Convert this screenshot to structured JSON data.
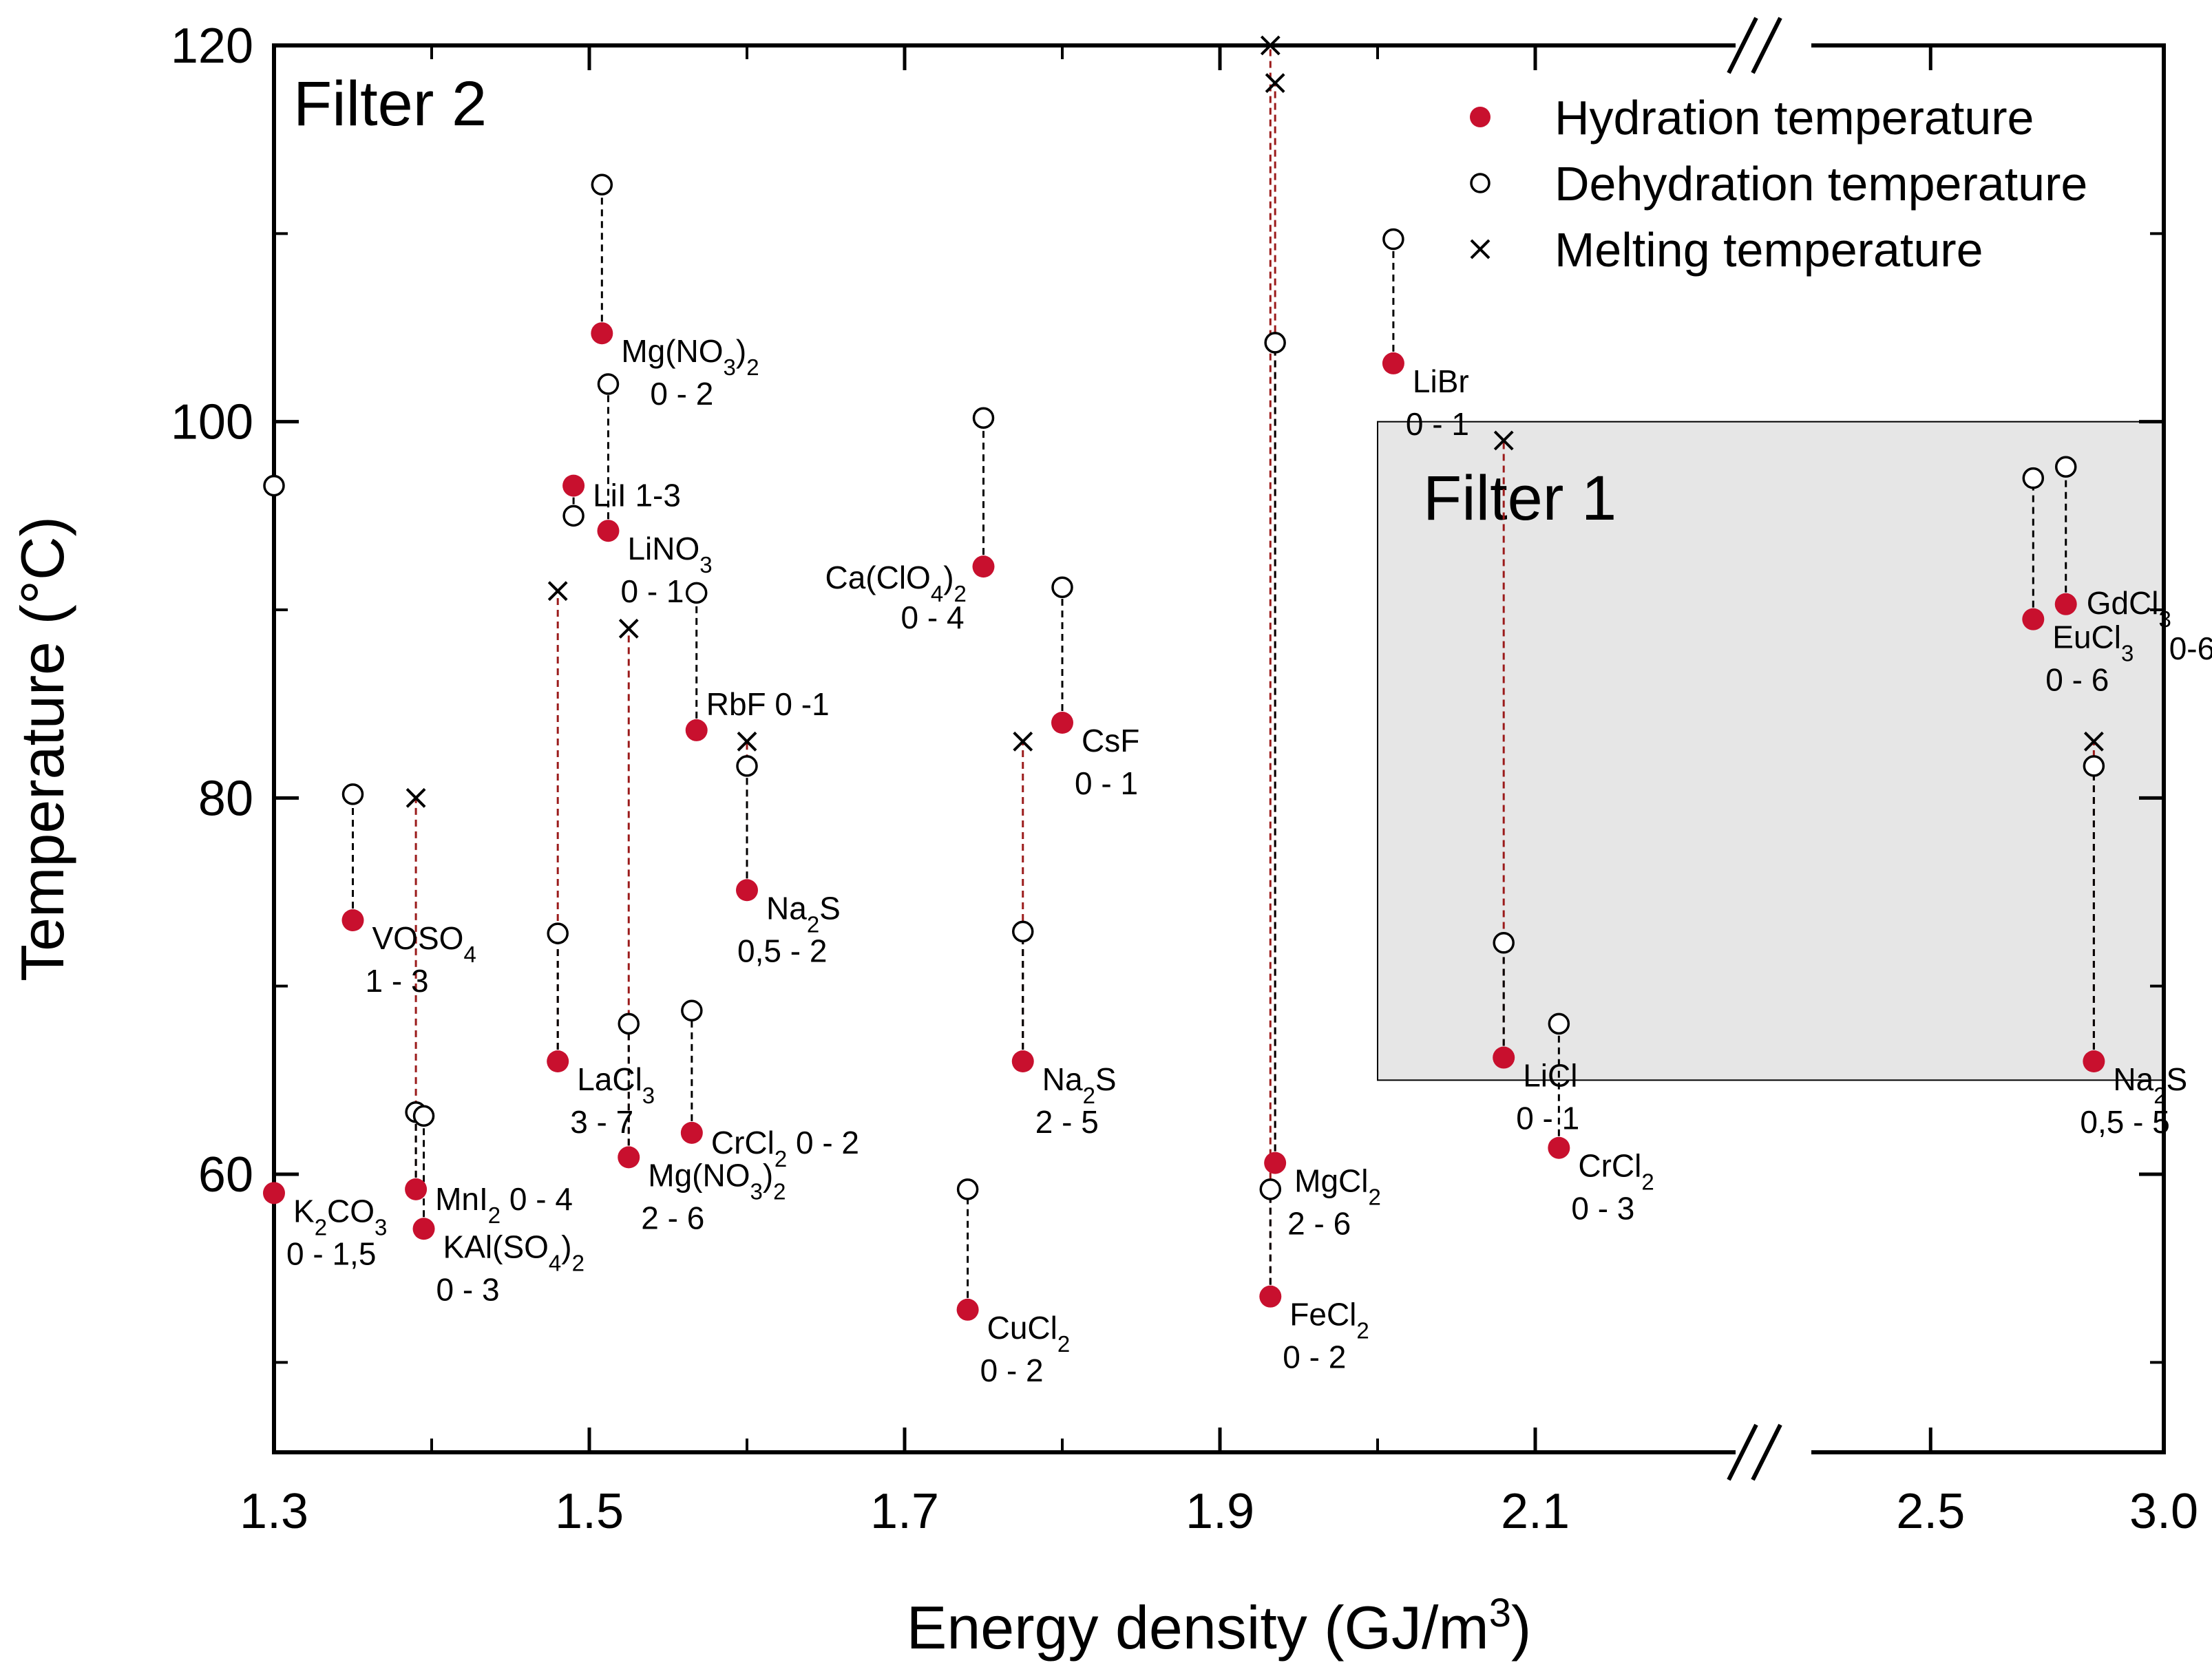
{
  "colors": {
    "hydration": "#c8102e",
    "dehydration": "#000000",
    "melting": "#000000",
    "connector_dehydration": "#000000",
    "connector_melting": "#9b1b1b",
    "filter1_fill": "#e6e6e6"
  },
  "chart_data": {
    "type": "scatter",
    "xlabel": "Energy density (GJ/m3)",
    "ylabel": "Temperature (°C)",
    "x_segments": [
      {
        "range": [
          1.3,
          2.2
        ],
        "ticks": [
          "1.3",
          "1.5",
          "1.7",
          "1.9",
          "2.1"
        ]
      },
      {
        "range": [
          2.2,
          3.0
        ],
        "ticks": [
          "2.5",
          "3.0"
        ]
      }
    ],
    "y_ticks": [
      "60",
      "80",
      "100",
      "120"
    ],
    "ylim": [
      45,
      120
    ],
    "legend": {
      "position": "top-right",
      "entries": [
        {
          "marker": "filled-circle",
          "label": "Hydration temperature"
        },
        {
          "marker": "open-circle",
          "label": "Dehydration temperature"
        },
        {
          "marker": "cross",
          "label": "Melting temperature"
        }
      ]
    },
    "regions": [
      {
        "name": "Filter 1",
        "x_range": [
          2.0,
          3.0
        ],
        "y_range": [
          65,
          100
        ]
      },
      {
        "name": "Filter 2"
      }
    ],
    "salts": [
      {
        "hyd_x": 1.3,
        "hyd_y": 59,
        "deh_x": 1.3,
        "deh_y": 96.6,
        "label": "K₂CO₃",
        "range": "0 - 1,5"
      },
      {
        "hyd_x": 1.35,
        "hyd_y": 73.5,
        "deh_x": 1.35,
        "deh_y": 80.2,
        "label": "VOSO₄",
        "range": "1 - 3"
      },
      {
        "hyd_x": 1.39,
        "hyd_y": 59.2,
        "deh_x": 1.39,
        "deh_y": 63.3,
        "melt_x": 1.39,
        "melt_y": 80,
        "label": "MnI₂ 0 - 4"
      },
      {
        "hyd_x": 1.395,
        "hyd_y": 57.1,
        "deh_x": 1.395,
        "deh_y": 63.1,
        "label": "KAl(SO₄)₂",
        "range": "0 - 3"
      },
      {
        "hyd_x": 1.48,
        "hyd_y": 66,
        "deh_x": 1.48,
        "deh_y": 72.8,
        "melt_x": 1.48,
        "melt_y": 91,
        "label": "LaCl₃",
        "range": "3 - 7"
      },
      {
        "hyd_x": 1.49,
        "hyd_y": 96.6,
        "deh_x": 1.49,
        "deh_y": 95,
        "label": "LiI 1-3"
      },
      {
        "hyd_x": 1.508,
        "hyd_y": 104.7,
        "deh_x": 1.508,
        "deh_y": 112.6,
        "label": "Mg(NO₃)₂",
        "range": "0 - 2"
      },
      {
        "hyd_x": 1.512,
        "hyd_y": 94.2,
        "deh_x": 1.512,
        "deh_y": 102,
        "label": "LiNO₃",
        "range": "0 - 1"
      },
      {
        "hyd_x": 1.525,
        "hyd_y": 60.9,
        "deh_x": 1.525,
        "deh_y": 68,
        "melt_x": 1.525,
        "melt_y": 89,
        "label": "Mg(NO₃)₂",
        "range": "2 - 6"
      },
      {
        "hyd_x": 1.565,
        "hyd_y": 62.2,
        "deh_x": 1.565,
        "deh_y": 68.7,
        "label": "CrCl₂ 0 - 2"
      },
      {
        "hyd_x": 1.568,
        "hyd_y": 83.6,
        "deh_x": 1.568,
        "deh_y": 90.9,
        "label": "RbF 0 -1"
      },
      {
        "hyd_x": 1.6,
        "hyd_y": 75.1,
        "deh_x": 1.6,
        "deh_y": 81.7,
        "melt_x": 1.6,
        "melt_y": 83,
        "label": "Na₂S",
        "range": "0,5 - 2"
      },
      {
        "hyd_x": 1.74,
        "hyd_y": 52.8,
        "deh_x": 1.74,
        "deh_y": 59.2,
        "label": "CuCl₂",
        "range": "0 - 2"
      },
      {
        "hyd_x": 1.75,
        "hyd_y": 92.3,
        "deh_x": 1.75,
        "deh_y": 100.2,
        "label": "Ca(ClO₄)₂",
        "range": "0 - 4"
      },
      {
        "hyd_x": 1.775,
        "hyd_y": 66,
        "deh_x": 1.775,
        "deh_y": 72.9,
        "melt_x": 1.775,
        "melt_y": 83,
        "label": "Na₂S",
        "range": "2 - 5"
      },
      {
        "hyd_x": 1.8,
        "hyd_y": 84,
        "deh_x": 1.8,
        "deh_y": 91.2,
        "label": "CsF",
        "range": "0 - 1"
      },
      {
        "hyd_x": 1.932,
        "hyd_y": 53.5,
        "deh_x": 1.932,
        "deh_y": 59.2,
        "melt_x": 1.932,
        "melt_y": 120,
        "label": "FeCl₂",
        "range": "0 - 2"
      },
      {
        "hyd_x": 1.935,
        "hyd_y": 60.6,
        "deh_x": 1.935,
        "deh_y": 104.2,
        "melt_x": 1.935,
        "melt_y": 118,
        "label": "MgCl₂",
        "range": "2 - 6"
      },
      {
        "hyd_x": 2.01,
        "hyd_y": 103.1,
        "deh_x": 2.01,
        "deh_y": 109.7,
        "label": "LiBr",
        "range": "0 - 1"
      },
      {
        "hyd_x": 2.08,
        "hyd_y": 66.2,
        "deh_x": 2.08,
        "deh_y": 72.3,
        "melt_x": 2.08,
        "melt_y": 99,
        "label": "LiCl",
        "range": "0 - 1"
      },
      {
        "hyd_x": 2.115,
        "hyd_y": 61.4,
        "deh_x": 2.115,
        "deh_y": 68,
        "label": "CrCl₂",
        "range": "0 - 3"
      },
      {
        "hyd_x": 2.72,
        "hyd_y": 89.5,
        "deh_x": 2.72,
        "deh_y": 97,
        "label": "EuCl₃",
        "range": "0 - 6"
      },
      {
        "hyd_x": 2.79,
        "hyd_y": 90.3,
        "deh_x": 2.79,
        "deh_y": 97.6,
        "label": "GdCl₃",
        "range": "0-6"
      },
      {
        "hyd_x": 2.85,
        "hyd_y": 66,
        "deh_x": 2.85,
        "deh_y": 81.7,
        "melt_x": 2.85,
        "melt_y": 83,
        "label": "Na₂S",
        "range": "0,5 - 5"
      }
    ]
  }
}
